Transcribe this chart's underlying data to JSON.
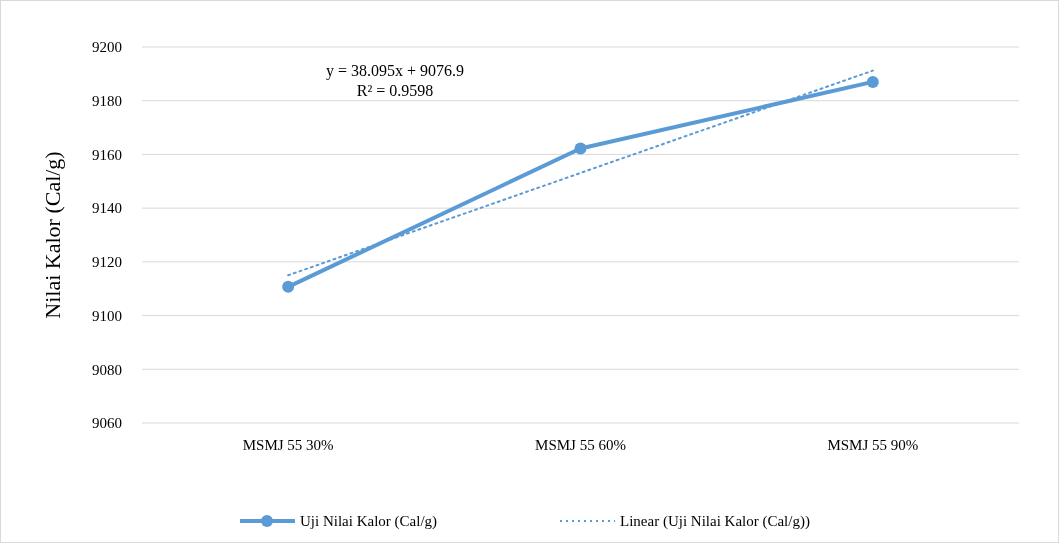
{
  "chart_data": {
    "type": "line",
    "ylabel": "Nilai Kalor (Cal/g)",
    "categories": [
      "MSMJ 55 30%",
      "MSMJ 55 60%",
      "MSMJ 55 90%"
    ],
    "series": [
      {
        "name": "Uji Nilai Kalor (Cal/g)",
        "color": "#5b9bd5",
        "values": [
          9110.7,
          9162.2,
          9187
        ],
        "marker": "circle",
        "line_style": "solid"
      },
      {
        "name": "Linear (Uji Nilai Kalor (Cal/g))",
        "type": "line",
        "color": "#5b9bd5",
        "x": [
          "MSMJ 55 30%",
          "MSMJ 55 60%",
          "MSMJ 55 90%"
        ],
        "values": [
          9115,
          9153.1,
          9191.2
        ],
        "marker": "none",
        "line_style": "dotted"
      }
    ],
    "ylim": [
      9060,
      9200
    ],
    "yticks": [
      9060,
      9080,
      9100,
      9120,
      9140,
      9160,
      9180,
      9200
    ],
    "grid": "y",
    "legend": "bottom",
    "annotations": [
      "y = 38.095x + 9076.9",
      "R² = 0.9598"
    ]
  }
}
